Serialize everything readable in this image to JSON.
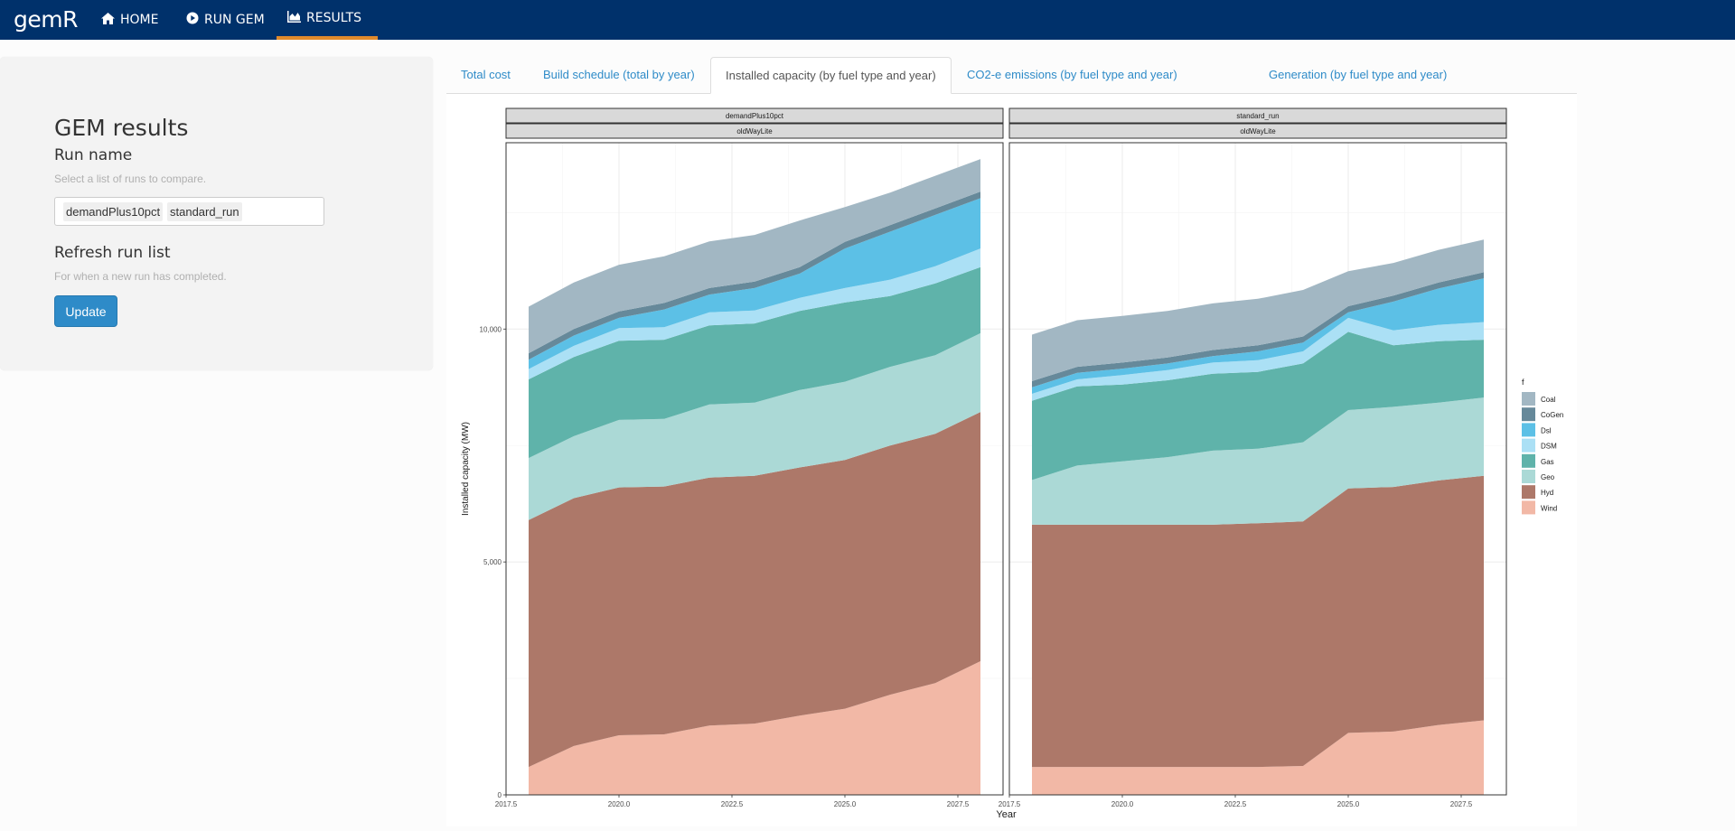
{
  "navbar": {
    "brand": "gemR",
    "items": [
      {
        "label": "HOME",
        "icon": "home-icon"
      },
      {
        "label": "RUN GEM",
        "icon": "play-circle-icon"
      },
      {
        "label": "RESULTS",
        "icon": "area-chart-icon",
        "active": true
      }
    ],
    "active_underline_color": "#e08a2c",
    "bg_color": "#00316b"
  },
  "sidebar": {
    "title": "GEM results",
    "run_name_label": "Run name",
    "run_name_help": "Select a list of runs to compare.",
    "selected_runs": [
      "demandPlus10pct",
      "standard_run"
    ],
    "refresh_label": "Refresh run list",
    "refresh_help": "For when a new run has completed.",
    "update_button": "Update"
  },
  "tabs": [
    {
      "label": "Total cost"
    },
    {
      "label": "Build schedule (total by year)"
    },
    {
      "label": "Installed capacity (by fuel type and year)",
      "active": true
    },
    {
      "label": "CO2-e emissions (by fuel type and year)"
    },
    {
      "label": "Generation (by fuel type and year)"
    }
  ],
  "chart_data": {
    "type": "area",
    "stacked": true,
    "xlabel": "Year",
    "ylabel": "Installed capacity (MW)",
    "xlim": [
      2017.5,
      2028.5
    ],
    "ylim": [
      0,
      14000
    ],
    "x_ticks": [
      2017.5,
      2020.0,
      2022.5,
      2025.0,
      2027.5
    ],
    "x_tick_labels": [
      "2017.5",
      "2020.0",
      "2022.5",
      "2025.0",
      "2027.5"
    ],
    "y_ticks": [
      0,
      5000,
      10000
    ],
    "y_tick_labels": [
      "0",
      "5,000",
      "10,000"
    ],
    "grid": true,
    "legend_title": "f",
    "legend_position": "right",
    "x": [
      2018,
      2019,
      2020,
      2021,
      2022,
      2023,
      2024,
      2025,
      2026,
      2027,
      2028
    ],
    "series_names": [
      "Coal",
      "CoGen",
      "Dsl",
      "DSM",
      "Gas",
      "Geo",
      "Hyd",
      "Wind"
    ],
    "series_colors": {
      "Coal": "#a2b7c3",
      "CoGen": "#66899a",
      "Dsl": "#5cc0e6",
      "DSM": "#abe0f5",
      "Gas": "#5fb3aa",
      "Geo": "#abd9d6",
      "Hyd": "#ad7869",
      "Wind": "#f2b8a6"
    },
    "panels": [
      {
        "strip_top": "demandPlus10pct",
        "strip_bottom": "oldWayLite",
        "series": [
          {
            "name": "Wind",
            "values": [
              600,
              1050,
              1280,
              1300,
              1490,
              1530,
              1700,
              1850,
              2150,
              2400,
              2870
            ]
          },
          {
            "name": "Hyd",
            "values": [
              5300,
              5320,
              5320,
              5320,
              5320,
              5320,
              5330,
              5340,
              5350,
              5350,
              5350
            ]
          },
          {
            "name": "Geo",
            "values": [
              1330,
              1330,
              1450,
              1450,
              1570,
              1570,
              1660,
              1680,
              1690,
              1690,
              1690
            ]
          },
          {
            "name": "Gas",
            "values": [
              1690,
              1700,
              1700,
              1700,
              1700,
              1700,
              1700,
              1700,
              1520,
              1540,
              1420
            ]
          },
          {
            "name": "DSM",
            "values": [
              220,
              240,
              270,
              270,
              280,
              280,
              280,
              310,
              350,
              370,
              400
            ]
          },
          {
            "name": "Dsl",
            "values": [
              200,
              220,
              220,
              380,
              380,
              480,
              520,
              850,
              1030,
              1100,
              1080
            ]
          },
          {
            "name": "CoGen",
            "values": [
              140,
              140,
              140,
              140,
              140,
              140,
              140,
              140,
              140,
              140,
              140
            ]
          },
          {
            "name": "Coal",
            "values": [
              1000,
              1000,
              1000,
              1000,
              1000,
              1000,
              1000,
              750,
              700,
              700,
              700
            ]
          }
        ]
      },
      {
        "strip_top": "standard_run",
        "strip_bottom": "oldWayLite",
        "series": [
          {
            "name": "Wind",
            "values": [
              600,
              600,
              600,
              600,
              600,
              600,
              620,
              1330,
              1360,
              1500,
              1600
            ]
          },
          {
            "name": "Hyd",
            "values": [
              5200,
              5200,
              5200,
              5200,
              5200,
              5230,
              5250,
              5250,
              5250,
              5250,
              5250
            ]
          },
          {
            "name": "Geo",
            "values": [
              960,
              1270,
              1360,
              1450,
              1590,
              1600,
              1700,
              1680,
              1720,
              1670,
              1680
            ]
          },
          {
            "name": "Gas",
            "values": [
              1700,
              1700,
              1650,
              1650,
              1650,
              1650,
              1690,
              1680,
              1320,
              1320,
              1240
            ]
          },
          {
            "name": "DSM",
            "values": [
              150,
              150,
              200,
              220,
              240,
              250,
              260,
              300,
              320,
              350,
              380
            ]
          },
          {
            "name": "Dsl",
            "values": [
              140,
              140,
              140,
              140,
              140,
              190,
              190,
              120,
              620,
              780,
              940
            ]
          },
          {
            "name": "CoGen",
            "values": [
              130,
              130,
              130,
              130,
              130,
              130,
              130,
              130,
              130,
              130,
              130
            ]
          },
          {
            "name": "Coal",
            "values": [
              1000,
              1000,
              1000,
              1000,
              1000,
              1000,
              1000,
              750,
              700,
              700,
              700
            ]
          }
        ]
      }
    ]
  }
}
